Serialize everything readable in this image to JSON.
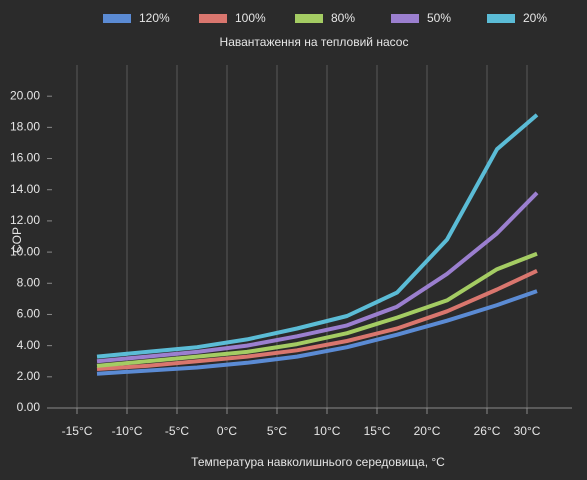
{
  "chart_data": {
    "type": "line",
    "legend_title": "Навантаження на тепловий насос",
    "xlabel": "Температура навколишнього середовища, °C",
    "ylabel": "COP",
    "x": [
      -13,
      -8,
      -3,
      2,
      7,
      12,
      17,
      22,
      27,
      31
    ],
    "series": [
      {
        "name": "120%",
        "color": "#5b8bd4",
        "values": [
          2.2,
          2.4,
          2.6,
          2.9,
          3.3,
          3.9,
          4.7,
          5.6,
          6.6,
          7.5
        ]
      },
      {
        "name": "100%",
        "color": "#d9766e",
        "values": [
          2.5,
          2.7,
          3.0,
          3.3,
          3.7,
          4.3,
          5.1,
          6.2,
          7.6,
          8.8
        ]
      },
      {
        "name": "80%",
        "color": "#a4cc63",
        "values": [
          2.7,
          3.0,
          3.3,
          3.6,
          4.1,
          4.8,
          5.8,
          6.9,
          8.9,
          9.9
        ]
      },
      {
        "name": "50%",
        "color": "#9b7fcf",
        "values": [
          3.0,
          3.3,
          3.6,
          4.0,
          4.6,
          5.3,
          6.5,
          8.6,
          11.2,
          13.8
        ]
      },
      {
        "name": "20%",
        "color": "#5bbcd6",
        "values": [
          3.3,
          3.6,
          3.9,
          4.4,
          5.1,
          5.9,
          7.4,
          10.8,
          16.6,
          18.8
        ]
      }
    ],
    "xlim": [
      -17.5,
      34.5
    ],
    "xticks": [
      {
        "value": -15,
        "label": "-15°C"
      },
      {
        "value": -10,
        "label": "-10°C"
      },
      {
        "value": -5,
        "label": "-5°C"
      },
      {
        "value": 0,
        "label": "0°C"
      },
      {
        "value": 5,
        "label": "5°C"
      },
      {
        "value": 10,
        "label": "10°C"
      },
      {
        "value": 15,
        "label": "15°C"
      },
      {
        "value": 20,
        "label": "20°C"
      },
      {
        "value": 26,
        "label": "26°C"
      },
      {
        "value": 30,
        "label": "30°C"
      }
    ],
    "ylim": [
      0,
      22
    ],
    "yticks": [
      {
        "value": 0,
        "label": "0.00"
      },
      {
        "value": 2,
        "label": "2.00"
      },
      {
        "value": 4,
        "label": "4.00"
      },
      {
        "value": 6,
        "label": "6.00"
      },
      {
        "value": 8,
        "label": "8.00"
      },
      {
        "value": 10,
        "label": "10.00"
      },
      {
        "value": 12,
        "label": "12.00"
      },
      {
        "value": 14,
        "label": "14.00"
      },
      {
        "value": 16,
        "label": "16.00"
      },
      {
        "value": 18,
        "label": "18.00"
      },
      {
        "value": 20,
        "label": "20.00"
      }
    ],
    "grid": "x"
  }
}
